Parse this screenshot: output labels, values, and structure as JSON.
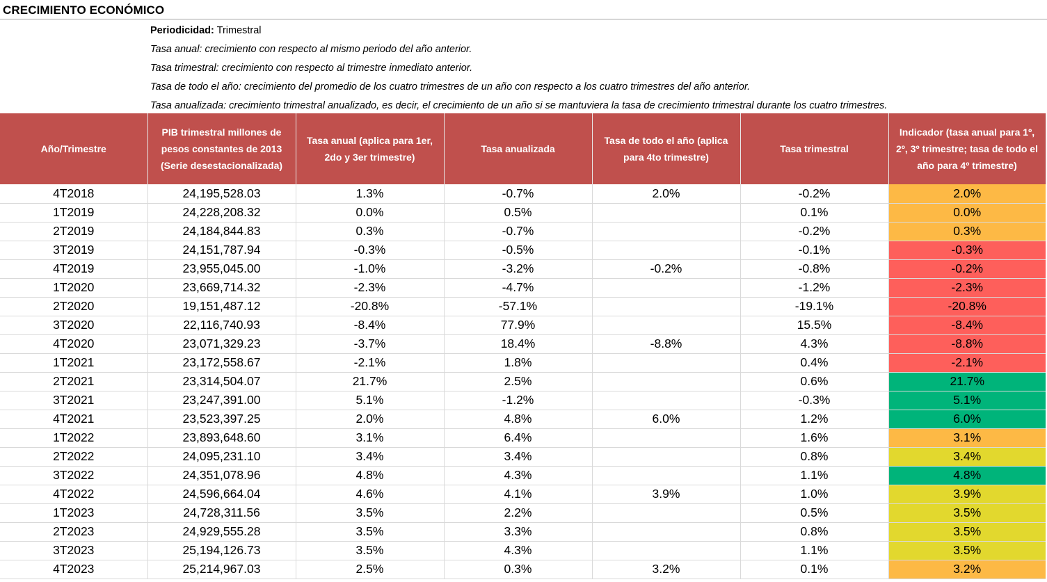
{
  "title": "CRECIMIENTO ECONÓMICO",
  "notes": {
    "periodicity_label": "Periodicidad:",
    "periodicity_value": " Trimestral",
    "line1": "Tasa anual: crecimiento con respecto al  mismo periodo del año anterior.",
    "line2": "Tasa trimestral: crecimiento con respecto al trimestre inmediato anterior.",
    "line3": "Tasa de todo el año: crecimiento del promedio de los cuatro trimestres de un año con respecto a los cuatro trimestres del año anterior.",
    "line4": "Tasa anualizada: crecimiento trimestral anualizado, es decir, el  crecimiento de un año si se mantuviera la tasa de crecimiento trimestral durante los cuatro trimestres."
  },
  "table": {
    "headers": [
      "Año/Trimestre",
      "PIB trimestral millones de pesos constantes de 2013 (Serie desestacionalizada)",
      "Tasa anual (aplica para 1er, 2do y 3er trimestre)",
      "Tasa anualizada",
      "Tasa de todo el año (aplica para 4to trimestre)",
      "Tasa trimestral",
      "Indicador (tasa anual para 1º, 2º, 3º trimestre; tasa de todo el año para 4º trimestre)"
    ],
    "rows": [
      {
        "period": "4T2018",
        "pib": "24,195,528.03",
        "annual": "1.3%",
        "annualized": "-0.7%",
        "whole_year": "2.0%",
        "quarterly": "-0.2%",
        "indicator": "2.0%",
        "color": "orange"
      },
      {
        "period": "1T2019",
        "pib": "24,228,208.32",
        "annual": "0.0%",
        "annualized": "0.5%",
        "whole_year": "",
        "quarterly": "0.1%",
        "indicator": "0.0%",
        "color": "orange"
      },
      {
        "period": "2T2019",
        "pib": "24,184,844.83",
        "annual": "0.3%",
        "annualized": "-0.7%",
        "whole_year": "",
        "quarterly": "-0.2%",
        "indicator": "0.3%",
        "color": "orange"
      },
      {
        "period": "3T2019",
        "pib": "24,151,787.94",
        "annual": "-0.3%",
        "annualized": "-0.5%",
        "whole_year": "",
        "quarterly": "-0.1%",
        "indicator": "-0.3%",
        "color": "red"
      },
      {
        "period": "4T2019",
        "pib": "23,955,045.00",
        "annual": "-1.0%",
        "annualized": "-3.2%",
        "whole_year": "-0.2%",
        "quarterly": "-0.8%",
        "indicator": "-0.2%",
        "color": "red"
      },
      {
        "period": "1T2020",
        "pib": "23,669,714.32",
        "annual": "-2.3%",
        "annualized": "-4.7%",
        "whole_year": "",
        "quarterly": "-1.2%",
        "indicator": "-2.3%",
        "color": "red"
      },
      {
        "period": "2T2020",
        "pib": "19,151,487.12",
        "annual": "-20.8%",
        "annualized": "-57.1%",
        "whole_year": "",
        "quarterly": "-19.1%",
        "indicator": "-20.8%",
        "color": "red"
      },
      {
        "period": "3T2020",
        "pib": "22,116,740.93",
        "annual": "-8.4%",
        "annualized": "77.9%",
        "whole_year": "",
        "quarterly": "15.5%",
        "indicator": "-8.4%",
        "color": "red"
      },
      {
        "period": "4T2020",
        "pib": "23,071,329.23",
        "annual": "-3.7%",
        "annualized": "18.4%",
        "whole_year": "-8.8%",
        "quarterly": "4.3%",
        "indicator": "-8.8%",
        "color": "red"
      },
      {
        "period": "1T2021",
        "pib": "23,172,558.67",
        "annual": "-2.1%",
        "annualized": "1.8%",
        "whole_year": "",
        "quarterly": "0.4%",
        "indicator": "-2.1%",
        "color": "red"
      },
      {
        "period": "2T2021",
        "pib": "23,314,504.07",
        "annual": "21.7%",
        "annualized": "2.5%",
        "whole_year": "",
        "quarterly": "0.6%",
        "indicator": "21.7%",
        "color": "green"
      },
      {
        "period": "3T2021",
        "pib": "23,247,391.00",
        "annual": "5.1%",
        "annualized": "-1.2%",
        "whole_year": "",
        "quarterly": "-0.3%",
        "indicator": "5.1%",
        "color": "green"
      },
      {
        "period": "4T2021",
        "pib": "23,523,397.25",
        "annual": "2.0%",
        "annualized": "4.8%",
        "whole_year": "6.0%",
        "quarterly": "1.2%",
        "indicator": "6.0%",
        "color": "green"
      },
      {
        "period": "1T2022",
        "pib": "23,893,648.60",
        "annual": "3.1%",
        "annualized": "6.4%",
        "whole_year": "",
        "quarterly": "1.6%",
        "indicator": "3.1%",
        "color": "orange"
      },
      {
        "period": "2T2022",
        "pib": "24,095,231.10",
        "annual": "3.4%",
        "annualized": "3.4%",
        "whole_year": "",
        "quarterly": "0.8%",
        "indicator": "3.4%",
        "color": "yellow"
      },
      {
        "period": "3T2022",
        "pib": "24,351,078.96",
        "annual": "4.8%",
        "annualized": "4.3%",
        "whole_year": "",
        "quarterly": "1.1%",
        "indicator": "4.8%",
        "color": "green"
      },
      {
        "period": "4T2022",
        "pib": "24,596,664.04",
        "annual": "4.6%",
        "annualized": "4.1%",
        "whole_year": "3.9%",
        "quarterly": "1.0%",
        "indicator": "3.9%",
        "color": "yellow"
      },
      {
        "period": "1T2023",
        "pib": "24,728,311.56",
        "annual": "3.5%",
        "annualized": "2.2%",
        "whole_year": "",
        "quarterly": "0.5%",
        "indicator": "3.5%",
        "color": "yellow"
      },
      {
        "period": "2T2023",
        "pib": "24,929,555.28",
        "annual": "3.5%",
        "annualized": "3.3%",
        "whole_year": "",
        "quarterly": "0.8%",
        "indicator": "3.5%",
        "color": "yellow"
      },
      {
        "period": "3T2023",
        "pib": "25,194,126.73",
        "annual": "3.5%",
        "annualized": "4.3%",
        "whole_year": "",
        "quarterly": "1.1%",
        "indicator": "3.5%",
        "color": "yellow"
      },
      {
        "period": "4T2023",
        "pib": "25,214,967.03",
        "annual": "2.5%",
        "annualized": "0.3%",
        "whole_year": "3.2%",
        "quarterly": "0.1%",
        "indicator": "3.2%",
        "color": "orange"
      }
    ]
  },
  "colors": {
    "header_bg": "#c0504d",
    "orange": "#fdb945",
    "red": "#fe5f5b",
    "green": "#00b47a",
    "yellow": "#e2d82e"
  }
}
